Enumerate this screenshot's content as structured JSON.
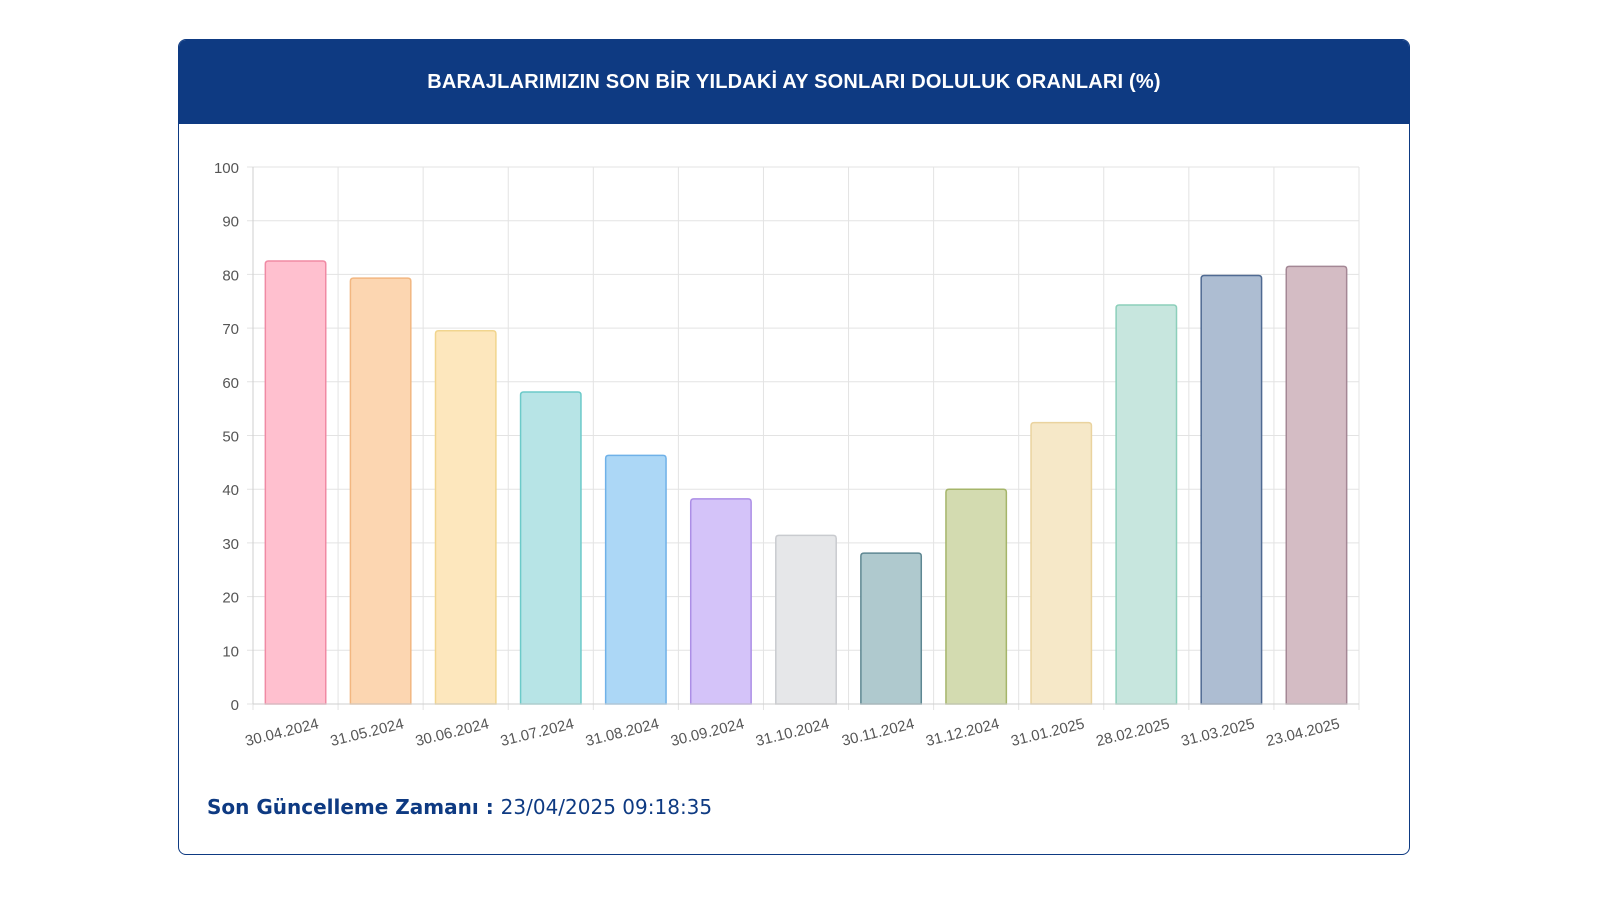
{
  "header": {
    "title": "BARAJLARIMIZIN SON BİR YILDAKİ AY SONLARI DOLULUK ORANLARI (%)"
  },
  "footer": {
    "label": "Son Güncelleme Zamanı",
    "separator": " : ",
    "value": "23/04/2025 09:18:35"
  },
  "colors": {
    "header_bg": "#0e3a82",
    "accent_text": "#0e3a82"
  },
  "chart_data": {
    "type": "bar",
    "title": "BARAJLARIMIZIN SON BİR YILDAKİ AY SONLARI DOLULUK ORANLARI (%)",
    "xlabel": "",
    "ylabel": "",
    "ylim": [
      0,
      100
    ],
    "yticks": [
      0,
      10,
      20,
      30,
      40,
      50,
      60,
      70,
      80,
      90,
      100
    ],
    "grid": true,
    "legend": "none",
    "categories": [
      "30.04.2024",
      "31.05.2024",
      "30.06.2024",
      "31.07.2024",
      "31.08.2024",
      "30.09.2024",
      "31.10.2024",
      "30.11.2024",
      "31.12.2024",
      "31.01.2025",
      "28.02.2025",
      "31.03.2025",
      "23.04.2025"
    ],
    "values": [
      82.5,
      79.3,
      69.5,
      58.1,
      46.3,
      38.2,
      31.4,
      28.1,
      40.0,
      52.4,
      74.3,
      79.8,
      81.5
    ],
    "fill_colors": [
      "#ffc0cf",
      "#fcd6b1",
      "#fde7bd",
      "#b7e4e6",
      "#acd7f6",
      "#d4c3f9",
      "#e6e7e9",
      "#afc9ce",
      "#d3dbb0",
      "#f6e8c8",
      "#c7e6de",
      "#adbdd2",
      "#d4bcc4"
    ],
    "border_colors": [
      "#f08aa4",
      "#f2b781",
      "#f1d58e",
      "#6ccac9",
      "#6fb1e8",
      "#ac8ee6",
      "#c9cbcf",
      "#5e8792",
      "#a5b56a",
      "#ead39f",
      "#8ccfba",
      "#4f6a92",
      "#a48795"
    ]
  }
}
